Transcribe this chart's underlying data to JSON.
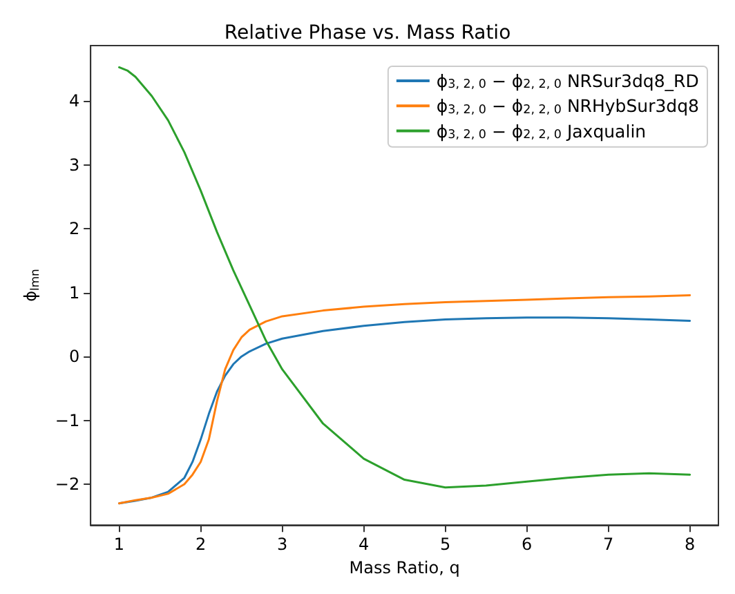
{
  "chart_data": {
    "type": "line",
    "title": "Relative Phase vs. Mass Ratio",
    "xlabel": "Mass Ratio, q",
    "ylabel": "ϕ$_{lmn}$",
    "xlim": [
      0.65,
      8.35
    ],
    "xticks": [
      1,
      2,
      3,
      4,
      5,
      6,
      7,
      8
    ],
    "ylim": [
      -2.64,
      4.87
    ],
    "yticks": [
      {
        "value": -2,
        "label": "−2"
      },
      {
        "value": -1,
        "label": "−1"
      },
      0,
      1,
      2,
      3,
      4
    ],
    "grid": false,
    "legend": "top right",
    "marker": "none",
    "line_style": "solid",
    "series": [
      {
        "name": "ϕ$_{3, 2, 0}$ − ϕ$_{2, 2, 0}$ NRSur3dq8_RD",
        "color": "#1f77b4",
        "x": [
          1,
          1.2,
          1.4,
          1.6,
          1.8,
          1.9,
          2,
          2.1,
          2.2,
          2.3,
          2.4,
          2.5,
          2.6,
          2.8,
          3,
          3.5,
          4,
          4.5,
          5,
          5.5,
          6,
          6.5,
          7,
          7.5,
          8
        ],
        "values": [
          -2.3,
          -2.26,
          -2.21,
          -2.12,
          -1.9,
          -1.65,
          -1.3,
          -0.9,
          -0.55,
          -0.3,
          -0.12,
          0,
          0.08,
          0.2,
          0.28,
          0.4,
          0.48,
          0.54,
          0.58,
          0.6,
          0.61,
          0.61,
          0.6,
          0.58,
          0.56
        ]
      },
      {
        "name": "ϕ$_{3, 2, 0}$ − ϕ$_{2, 2, 0}$ NRHybSur3dq8",
        "color": "#ff7f0e",
        "x": [
          1,
          1.2,
          1.4,
          1.6,
          1.8,
          1.9,
          2,
          2.1,
          2.2,
          2.3,
          2.4,
          2.5,
          2.6,
          2.8,
          3,
          3.5,
          4,
          4.5,
          5,
          5.5,
          6,
          6.5,
          7,
          7.5,
          8
        ],
        "values": [
          -2.3,
          -2.25,
          -2.21,
          -2.15,
          -2,
          -1.85,
          -1.65,
          -1.3,
          -0.7,
          -0.2,
          0.1,
          0.3,
          0.42,
          0.55,
          0.63,
          0.72,
          0.78,
          0.82,
          0.85,
          0.87,
          0.89,
          0.91,
          0.93,
          0.94,
          0.96
        ]
      },
      {
        "name": "ϕ$_{3, 2, 0}$ − ϕ$_{2, 2, 0}$ Jaxqualin",
        "color": "#2ca02c",
        "x": [
          1,
          1.1,
          1.2,
          1.4,
          1.6,
          1.8,
          2,
          2.2,
          2.4,
          2.6,
          2.8,
          3,
          3.5,
          4,
          4.5,
          5,
          5.5,
          6,
          6.5,
          7,
          7.5,
          8
        ],
        "values": [
          4.53,
          4.48,
          4.38,
          4.08,
          3.7,
          3.2,
          2.6,
          1.95,
          1.35,
          0.8,
          0.25,
          -0.2,
          -1.05,
          -1.6,
          -1.93,
          -2.05,
          -2.02,
          -1.96,
          -1.9,
          -1.85,
          -1.83,
          -1.85
        ]
      }
    ]
  }
}
